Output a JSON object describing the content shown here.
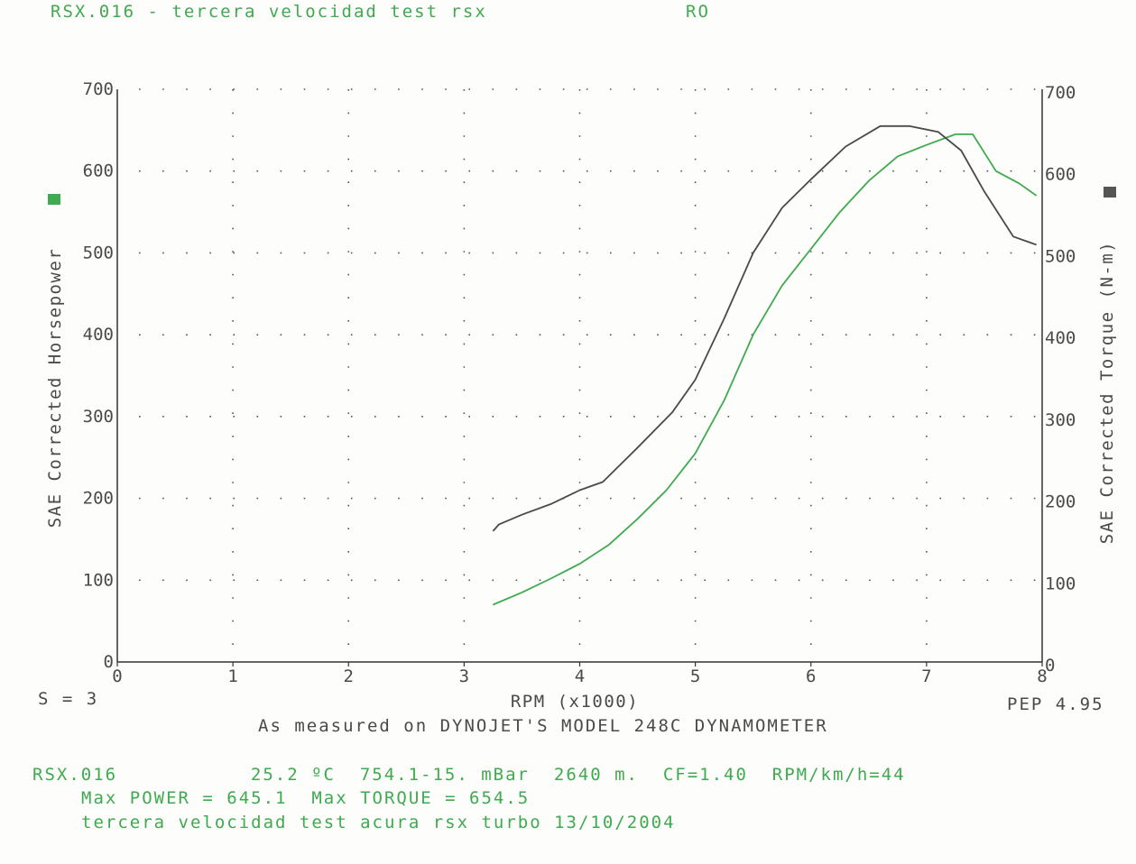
{
  "header": {
    "file": "RSX.016 - tercera velocidad test rsx",
    "code": "RO"
  },
  "footer": {
    "s_label": "S = 3",
    "pep_label": "PEP 4.95",
    "measured_note": "As measured on DYNOJET'S MODEL 248C DYNAMOMETER",
    "line1": "RSX.016           25.2 ºC  754.1-15. mBar  2640 m.  CF=1.40  RPM/km/h=44",
    "line2": "Max POWER = 645.1  Max TORQUE = 654.5",
    "line3": "tercera velocidad test acura rsx turbo 13/10/2004"
  },
  "colors": {
    "power": "#3faa4f",
    "torque": "#4a4a4a",
    "grid": "#555555"
  },
  "chart_data": {
    "type": "line",
    "xlabel": "RPM (x1000)",
    "ylabel_left": "SAE Corrected Horsepower",
    "ylabel_right": "SAE Corrected Torque (N-m)",
    "xlim": [
      0,
      8
    ],
    "ylim_left": [
      0,
      700
    ],
    "ylim_right": [
      0,
      700
    ],
    "x_ticks": [
      "0",
      "1",
      "2",
      "3",
      "4",
      "5",
      "6",
      "7",
      "8"
    ],
    "y_ticks_left": [
      "0",
      "100",
      "200",
      "300",
      "400",
      "500",
      "600",
      "700"
    ],
    "y_ticks_right": [
      "0",
      "100",
      "200",
      "300",
      "400",
      "500",
      "600",
      "700"
    ],
    "grid": true,
    "series": [
      {
        "key": "power",
        "axis": "left",
        "x": [
          3.25,
          3.5,
          3.75,
          4.0,
          4.25,
          4.5,
          4.75,
          5.0,
          5.25,
          5.5,
          5.75,
          6.0,
          6.25,
          6.5,
          6.75,
          7.0,
          7.25,
          7.4,
          7.6,
          7.8,
          7.95
        ],
        "values": [
          70,
          85,
          102,
          120,
          143,
          175,
          210,
          255,
          320,
          400,
          460,
          505,
          550,
          588,
          618,
          632,
          645,
          645,
          600,
          585,
          570
        ]
      },
      {
        "key": "torque",
        "axis": "right",
        "x": [
          3.25,
          3.3,
          3.5,
          3.75,
          4.0,
          4.2,
          4.5,
          4.8,
          5.0,
          5.25,
          5.5,
          5.75,
          6.0,
          6.3,
          6.6,
          6.85,
          7.1,
          7.3,
          7.5,
          7.75,
          7.95
        ],
        "values": [
          160,
          168,
          180,
          193,
          210,
          220,
          262,
          305,
          345,
          420,
          500,
          555,
          590,
          630,
          655,
          655,
          648,
          625,
          575,
          520,
          510
        ]
      }
    ]
  }
}
